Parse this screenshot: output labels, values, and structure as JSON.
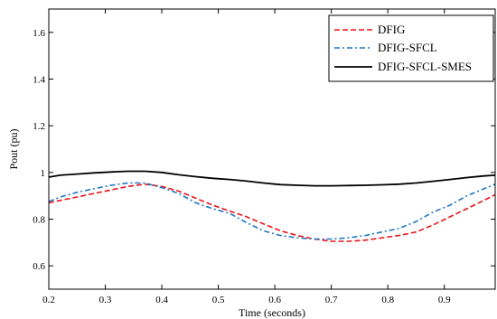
{
  "chart_data": {
    "type": "line",
    "xlabel": "Time (seconds)",
    "ylabel": "Pout (pu)",
    "xlim": [
      0.2,
      0.99
    ],
    "ylim": [
      0.5,
      1.7
    ],
    "xticks": [
      "0.2",
      "0.3",
      "0.4",
      "0.5",
      "0.6",
      "0.7",
      "0.8",
      "0.9"
    ],
    "yticks": [
      "0.6",
      "0.8",
      "1",
      "1.2",
      "1.4",
      "1.6"
    ],
    "grid": false,
    "legend_position": "top-right",
    "series": [
      {
        "name": "DFIG",
        "color": "#e8151b",
        "style": "dashed",
        "x": [
          0.2,
          0.22,
          0.25,
          0.28,
          0.31,
          0.34,
          0.37,
          0.4,
          0.43,
          0.46,
          0.49,
          0.52,
          0.55,
          0.58,
          0.61,
          0.64,
          0.67,
          0.7,
          0.73,
          0.76,
          0.79,
          0.82,
          0.85,
          0.88,
          0.91,
          0.94,
          0.97,
          0.99
        ],
        "y": [
          0.87,
          0.88,
          0.895,
          0.91,
          0.925,
          0.94,
          0.95,
          0.94,
          0.92,
          0.89,
          0.86,
          0.835,
          0.81,
          0.78,
          0.75,
          0.73,
          0.715,
          0.705,
          0.705,
          0.71,
          0.72,
          0.73,
          0.745,
          0.775,
          0.81,
          0.845,
          0.88,
          0.905
        ]
      },
      {
        "name": "DFIG-SFCL",
        "color": "#1f77c4",
        "style": "dashdot",
        "x": [
          0.2,
          0.22,
          0.25,
          0.28,
          0.31,
          0.34,
          0.37,
          0.4,
          0.43,
          0.46,
          0.49,
          0.52,
          0.55,
          0.58,
          0.61,
          0.64,
          0.67,
          0.7,
          0.73,
          0.76,
          0.79,
          0.82,
          0.85,
          0.88,
          0.91,
          0.94,
          0.97,
          0.99
        ],
        "y": [
          0.875,
          0.895,
          0.915,
          0.93,
          0.945,
          0.955,
          0.955,
          0.935,
          0.91,
          0.87,
          0.845,
          0.825,
          0.785,
          0.75,
          0.73,
          0.72,
          0.715,
          0.715,
          0.72,
          0.73,
          0.745,
          0.76,
          0.79,
          0.83,
          0.86,
          0.9,
          0.93,
          0.95
        ]
      },
      {
        "name": "DFIG-SFCL-SMES",
        "color": "#000000",
        "style": "solid",
        "x": [
          0.2,
          0.22,
          0.25,
          0.28,
          0.31,
          0.34,
          0.37,
          0.4,
          0.43,
          0.46,
          0.49,
          0.52,
          0.55,
          0.58,
          0.61,
          0.64,
          0.67,
          0.7,
          0.73,
          0.76,
          0.79,
          0.82,
          0.85,
          0.88,
          0.91,
          0.94,
          0.97,
          0.99
        ],
        "y": [
          0.98,
          0.988,
          0.993,
          0.998,
          1.002,
          1.005,
          1.005,
          1.0,
          0.99,
          0.982,
          0.975,
          0.97,
          0.963,
          0.955,
          0.948,
          0.945,
          0.943,
          0.943,
          0.944,
          0.945,
          0.947,
          0.95,
          0.955,
          0.962,
          0.97,
          0.978,
          0.985,
          0.988
        ]
      }
    ]
  }
}
